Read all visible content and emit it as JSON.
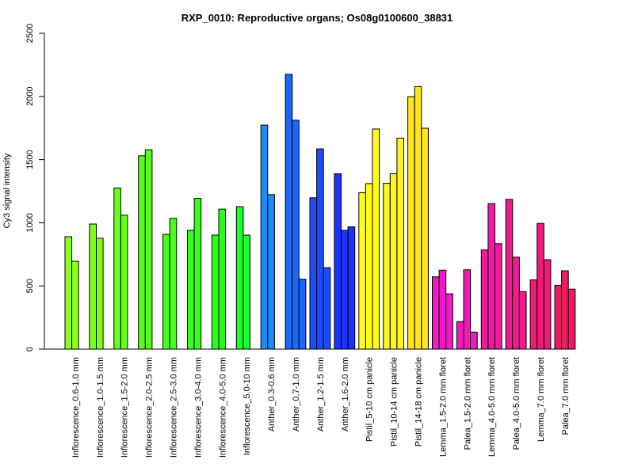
{
  "chart_data": {
    "type": "bar",
    "title": "RXP_0010: Reproductive organs; Os08g0100600_38831",
    "xlabel": "",
    "ylabel": "Cy3 signal intensity",
    "ylim": [
      0,
      2500
    ],
    "yticks": [
      0,
      500,
      1000,
      1500,
      2000,
      2500
    ],
    "grid": false,
    "legend": "none",
    "groups": [
      {
        "label": "Inflorescence_0.6-1.0 mm",
        "color": "#8cff1a",
        "values": [
          890,
          695
        ]
      },
      {
        "label": "Inflorescence_1.0-1.5 mm",
        "color": "#7dff1a",
        "values": [
          990,
          878
        ]
      },
      {
        "label": "Inflorescence_1.5-2.0 mm",
        "color": "#66ff1a",
        "values": [
          1275,
          1060
        ]
      },
      {
        "label": "Inflorescence_2.0-2.5 mm",
        "color": "#57ff1a",
        "values": [
          1530,
          1578
        ]
      },
      {
        "label": "Inflorescence_2.5-3.0 mm",
        "color": "#47ff1a",
        "values": [
          908,
          1035
        ]
      },
      {
        "label": "Inflorescence_3.0-4.0 mm",
        "color": "#38ff1a",
        "values": [
          940,
          1193
        ]
      },
      {
        "label": "Inflorescence_4.0-5.0 mm",
        "color": "#29ff1a",
        "values": [
          903,
          1108
        ]
      },
      {
        "label": "Inflorescence_5.0-10 mm",
        "color": "#1aff2e",
        "values": [
          1128,
          902
        ]
      },
      {
        "label": "Anther_0.3-0.6 mm",
        "color": "#1a8cff",
        "values": [
          1773,
          1223
        ]
      },
      {
        "label": "Anther_0.7-1.0 mm",
        "color": "#1a66ff",
        "values": [
          2175,
          1812,
          553
        ]
      },
      {
        "label": "Anther_1.2-1.5 mm",
        "color": "#1a4dff",
        "values": [
          1198,
          1585,
          645
        ]
      },
      {
        "label": "Anther_1.6-2.0 mm",
        "color": "#1a33ff",
        "values": [
          1388,
          940,
          968
        ]
      },
      {
        "label": "Pistil_5-10 cm panicle",
        "color": "#ffff1a",
        "values": [
          1238,
          1310,
          1742
        ]
      },
      {
        "label": "Pistil_10-14 cm panicle",
        "color": "#fff51a",
        "values": [
          1312,
          1388,
          1670
        ]
      },
      {
        "label": "Pistil_14-18 cm panicle",
        "color": "#ffe61a",
        "values": [
          1998,
          2078,
          1748
        ]
      },
      {
        "label": "Lemma_1.5-2.0 mm floret",
        "color": "#f01ac8",
        "values": [
          572,
          625,
          438
        ]
      },
      {
        "label": "Palea_1.5-2.0 mm floret",
        "color": "#f01ab9",
        "values": [
          218,
          628,
          135
        ]
      },
      {
        "label": "Lemma_4.0-5.0 mm floret",
        "color": "#f01aa0",
        "values": [
          785,
          1152,
          835
        ]
      },
      {
        "label": "Palea_4.0-5.0 mm floret",
        "color": "#f01a91",
        "values": [
          1185,
          728,
          455
        ]
      },
      {
        "label": "Lemma_7.0 mm floret",
        "color": "#f01a78",
        "values": [
          548,
          995,
          708
        ]
      },
      {
        "label": "Palea_7.0 mm floret",
        "color": "#f01a64",
        "values": [
          505,
          620,
          475
        ]
      }
    ]
  }
}
